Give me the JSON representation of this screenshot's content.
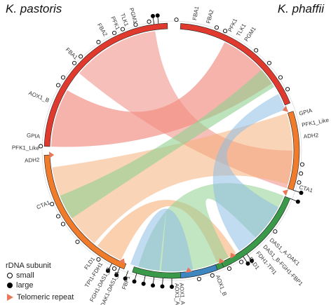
{
  "titles": {
    "left": "K. pastoris",
    "right": "K. phaffii"
  },
  "legend": {
    "heading": "rDNA subunit",
    "small": "small",
    "large": "large",
    "telomeric": "Telomeric repeat"
  },
  "colors": {
    "red": "#e03a2f",
    "orange": "#ef7b2b",
    "green": "#3a9a4a",
    "blue": "#3d86c0",
    "ribbon_red": "#f08a80",
    "ribbon_orange": "#f6b07a",
    "ribbon_green": "#8fd08f",
    "ribbon_blue": "#8ebde3",
    "telomere": "#e9785a"
  },
  "segments": [
    {
      "name": "left-red",
      "color": "red",
      "start": 272,
      "end": 358
    },
    {
      "name": "left-orange",
      "color": "orange",
      "start": 202,
      "end": 268
    },
    {
      "name": "left-green",
      "color": "green",
      "start": 152,
      "end": 198
    },
    {
      "name": "left-blue",
      "color": "blue",
      "start": 118,
      "end": 148
    },
    {
      "name": "right-red",
      "color": "red",
      "start": 4,
      "end": 68
    },
    {
      "name": "right-orange",
      "color": "orange",
      "start": 72,
      "end": 108
    },
    {
      "name": "right-green",
      "color": "green",
      "start": 112,
      "end": 156
    },
    {
      "name": "right-blue",
      "color": "blue",
      "start": 159,
      "end": 176
    }
  ],
  "ribbons": [
    {
      "color": "ribbon_red",
      "a": [
        272,
        300
      ],
      "b": [
        26,
        56
      ],
      "opacity": 0.65
    },
    {
      "color": "ribbon_red",
      "a": [
        310,
        352
      ],
      "b": [
        90,
        108
      ],
      "opacity": 0.55
    },
    {
      "color": "ribbon_orange",
      "a": [
        220,
        262
      ],
      "b": [
        72,
        106
      ],
      "opacity": 0.55
    },
    {
      "color": "ribbon_orange",
      "a": [
        205,
        218
      ],
      "b": [
        148,
        158
      ],
      "opacity": 0.6
    },
    {
      "color": "ribbon_green",
      "a": [
        152,
        196
      ],
      "b": [
        112,
        136
      ],
      "opacity": 0.55
    },
    {
      "color": "ribbon_green",
      "a": [
        236,
        248
      ],
      "b": [
        48,
        58
      ],
      "opacity": 0.6
    },
    {
      "color": "ribbon_blue",
      "a": [
        118,
        146
      ],
      "b": [
        62,
        70
      ],
      "opacity": 0.55
    },
    {
      "color": "ribbon_blue",
      "a": [
        170,
        185
      ],
      "b": [
        186,
        200
      ],
      "opacity": 0.55
    }
  ],
  "gene_labels": [
    {
      "text": "TLK1",
      "angle": 340
    },
    {
      "text": "PGM1",
      "angle": 344
    },
    {
      "text": "PFK1",
      "angle": 336
    },
    {
      "text": "FBA2",
      "angle": 330
    },
    {
      "text": "FBA1",
      "angle": 314
    },
    {
      "text": "AOX1_B",
      "angle": 292
    },
    {
      "text": "GPIA",
      "angle": 276
    },
    {
      "text": "PFK1_Like",
      "angle": 271
    },
    {
      "text": "ADH2",
      "angle": 266
    },
    {
      "text": "CTA1",
      "angle": 247
    },
    {
      "text": "FLD1",
      "angle": 216
    },
    {
      "text": "TPI1-FDH1",
      "angle": 212
    },
    {
      "text": "FGH1-DAS1_B",
      "angle": 208
    },
    {
      "text": "DAK1-DAS1_A",
      "angle": 204
    },
    {
      "text": "FBP1",
      "angle": 199
    },
    {
      "text": "AOX1_A",
      "angle": 178
    },
    {
      "text": "FBA1",
      "angle": 10
    },
    {
      "text": "FBA2",
      "angle": 16
    },
    {
      "text": "PFK1",
      "angle": 26
    },
    {
      "text": "TLK1",
      "angle": 30
    },
    {
      "text": "PGM1",
      "angle": 34
    },
    {
      "text": "GPIA",
      "angle": 74
    },
    {
      "text": "PFK1_Like",
      "angle": 79
    },
    {
      "text": "ADH2",
      "angle": 84
    },
    {
      "text": "CTA1",
      "angle": 106
    },
    {
      "text": "DAS1_A-DAK1",
      "angle": 132
    },
    {
      "text": "DAS1_B-FGH1-FBP1",
      "angle": 136
    },
    {
      "text": "FDH1-TPI1",
      "angle": 140
    },
    {
      "text": "FLD1",
      "angle": 144
    },
    {
      "text": "AOX1_B",
      "angle": 160
    },
    {
      "text": "AOX1_A",
      "angle": 176
    }
  ],
  "rdna_small": [
    300,
    304,
    312,
    316,
    326,
    334,
    338,
    344,
    350,
    2,
    20,
    24,
    40,
    48,
    56,
    62,
    96,
    100,
    104,
    128,
    148,
    154,
    162,
    168,
    236,
    240,
    246,
    272,
    206,
    214,
    226
  ],
  "rdna_large": [
    352,
    354,
    108,
    112,
    144,
    146,
    180,
    184,
    188,
    192,
    196,
    200,
    204,
    208
  ],
  "telomeres": [
    268,
    204,
    150,
    172,
    70,
    110,
    156
  ]
}
